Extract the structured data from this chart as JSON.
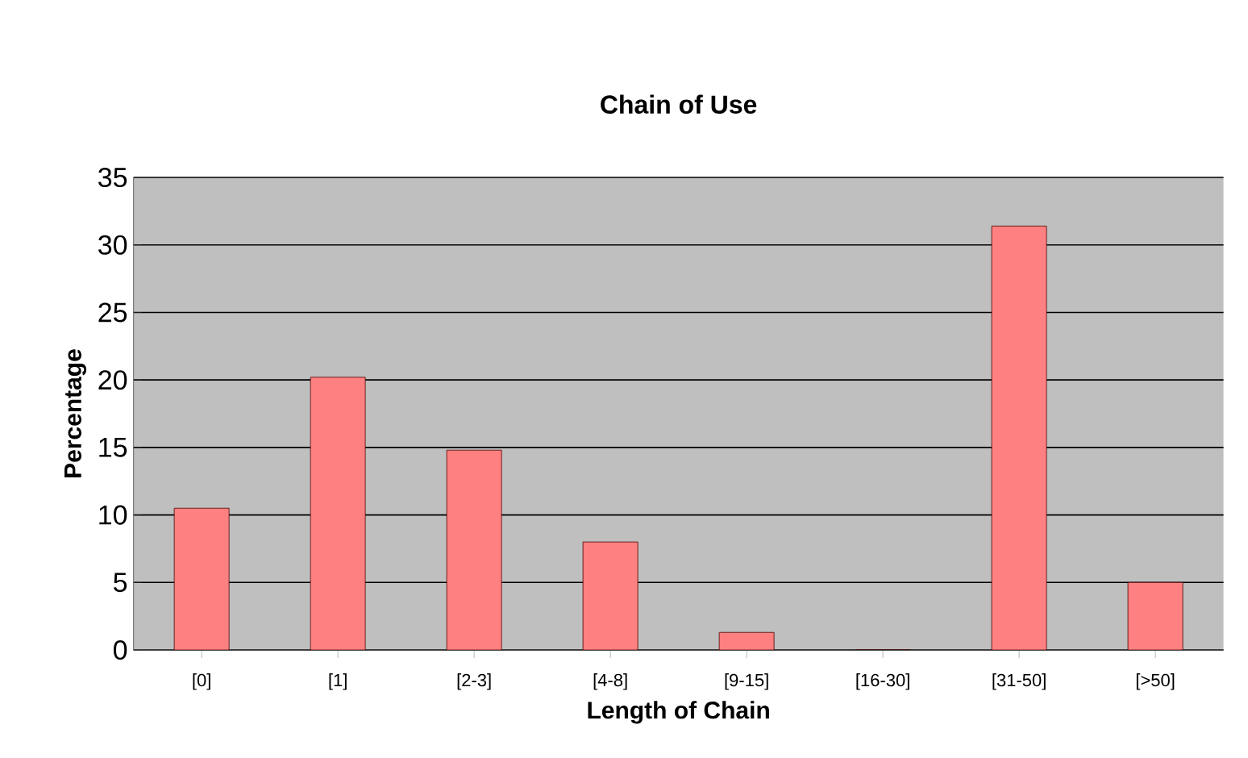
{
  "chart_data": {
    "type": "bar",
    "title": "Chain of Use",
    "xlabel": "Length of Chain",
    "ylabel": "Percentage",
    "categories": [
      "[0]",
      "[1]",
      "[2-3]",
      "[4-8]",
      "[9-15]",
      "[16-30]",
      "[31-50]",
      "[>50]"
    ],
    "values": [
      10.5,
      20.2,
      14.8,
      8.0,
      1.3,
      0,
      31.4,
      5.0
    ],
    "color": "#ff8080",
    "ylim": [
      0,
      35
    ],
    "yticks": [
      0,
      5,
      10,
      15,
      20,
      25,
      30,
      35
    ],
    "grid": "y"
  }
}
